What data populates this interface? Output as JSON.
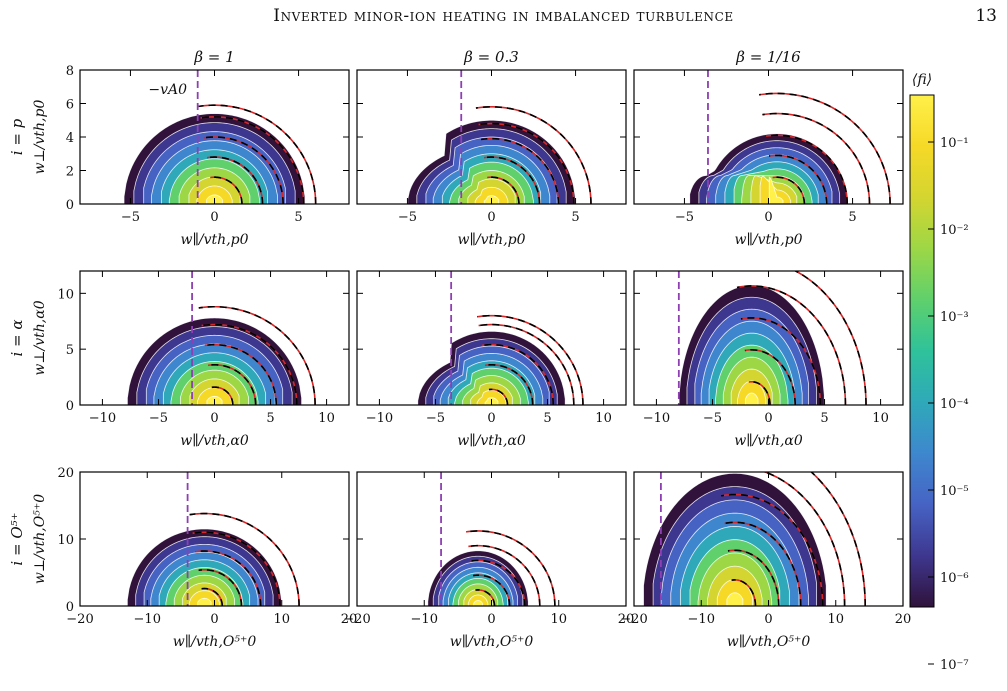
{
  "header": {
    "title": "Inverted minor-ion heating in imbalanced turbulence",
    "page_number": "13"
  },
  "chart_data": {
    "type": "heatmap",
    "column_titles": [
      "β = 1",
      "β = 0.3",
      "β = 1/16"
    ],
    "row_labels": [
      "i = p",
      "i = α",
      "i = O⁵⁺"
    ],
    "ylabels": [
      "w⊥/vth,p0",
      "w⊥/vth,α0",
      "w⊥/vth,O⁵⁺0"
    ],
    "xlabels": [
      "w∥/vth,p0",
      "w∥/vth,α0",
      "w∥/vth,O⁵⁺0"
    ],
    "annotation": "−vA0",
    "colorbar": {
      "label": "⟨fi⟩",
      "scale": "log",
      "tick_labels": [
        "10⁻¹",
        "10⁻²",
        "10⁻³",
        "10⁻⁴",
        "10⁻⁵",
        "10⁻⁶",
        "10⁻⁷"
      ],
      "colormap": [
        "#30123b",
        "#3e378f",
        "#4663c4",
        "#3e87ce",
        "#2fa9b9",
        "#2fc29a",
        "#5fd06c",
        "#9dd746",
        "#d4d530",
        "#f6d927",
        "#fff04a"
      ]
    },
    "rows": [
      {
        "ion": "p",
        "xlim": [
          -8,
          8
        ],
        "ylim": [
          0,
          8
        ],
        "xticks": [
          -5,
          0,
          5
        ],
        "yticks": [
          0,
          2,
          4,
          6,
          8
        ],
        "xtick_labels": [
          "−5",
          "0",
          "5"
        ],
        "ytick_labels": [
          "0",
          "2",
          "4",
          "6",
          "8"
        ],
        "panels": [
          {
            "beta": "1",
            "neg_vA0": -1.0,
            "outer_r": 5.4,
            "center": 0.0,
            "bump": 0,
            "dashed_radii": [
              1.6,
              2.8,
              4.0,
              5.2,
              5.9
            ]
          },
          {
            "beta": "0.3",
            "neg_vA0": -1.8,
            "outer_r": 5.0,
            "center": 0.0,
            "bump": 1,
            "dashed_radii": [
              1.6,
              2.8,
              3.9,
              4.8,
              5.8
            ]
          },
          {
            "beta": "1/16",
            "neg_vA0": -3.6,
            "outer_r": 4.2,
            "center": 0.5,
            "bump": 2,
            "dashed_radii": [
              1.6,
              2.9,
              4.1,
              5.4,
              6.6
            ]
          }
        ]
      },
      {
        "ion": "α",
        "xlim": [
          -12,
          12
        ],
        "ylim": [
          0,
          12
        ],
        "xticks": [
          -10,
          -5,
          0,
          5,
          10
        ],
        "yticks": [
          0,
          5,
          10
        ],
        "xtick_labels": [
          "−10",
          "−5",
          "0",
          "5",
          "10"
        ],
        "ytick_labels": [
          "0",
          "5",
          "10"
        ],
        "panels": [
          {
            "beta": "1",
            "neg_vA0": -2.0,
            "outer_r": 7.8,
            "center": 0.0,
            "bump": 0,
            "dashed_radii": [
              1.6,
              3.6,
              5.4,
              7.2,
              8.8
            ]
          },
          {
            "beta": "0.3",
            "neg_vA0": -3.6,
            "outer_r": 6.6,
            "center": 0.0,
            "bump": 1,
            "dashed_radii": [
              1.4,
              3.6,
              5.4,
              7.2,
              8.0
            ]
          },
          {
            "beta": "1/16",
            "neg_vA0": -8.0,
            "outer_r": 6.5,
            "center": -1.5,
            "bump": 3,
            "dashed_radii": [
              1.6,
              3.8,
              6.0,
              8.2,
              10.0
            ]
          }
        ]
      },
      {
        "ion": "O⁵⁺",
        "xlim": [
          -20,
          20
        ],
        "ylim": [
          0,
          20
        ],
        "xticks": [
          -20,
          -10,
          0,
          10,
          20
        ],
        "yticks": [
          0,
          10,
          20
        ],
        "xtick_labels": [
          "−20",
          "−10",
          "0",
          "10",
          "20"
        ],
        "ytick_labels": [
          "0",
          "10",
          "20"
        ],
        "panels": [
          {
            "beta": "1",
            "neg_vA0": -4.0,
            "outer_r": 11.5,
            "center": -1.5,
            "bump": 0,
            "dashed_radii": [
              2.6,
              5.4,
              8.2,
              11.0,
              13.8
            ]
          },
          {
            "beta": "0.3",
            "neg_vA0": -7.5,
            "outer_r": 7.5,
            "center": -2.0,
            "bump": 4,
            "dashed_radii": [
              2.4,
              4.6,
              6.8,
              9.0,
              11.2
            ]
          },
          {
            "beta": "1/16",
            "neg_vA0": -16.0,
            "outer_r": 11.0,
            "center": -5.0,
            "bump": 5,
            "dashed_radii": [
              3.0,
              6.4,
              9.6,
              12.8,
              16.0,
              19.0
            ]
          }
        ]
      }
    ]
  }
}
